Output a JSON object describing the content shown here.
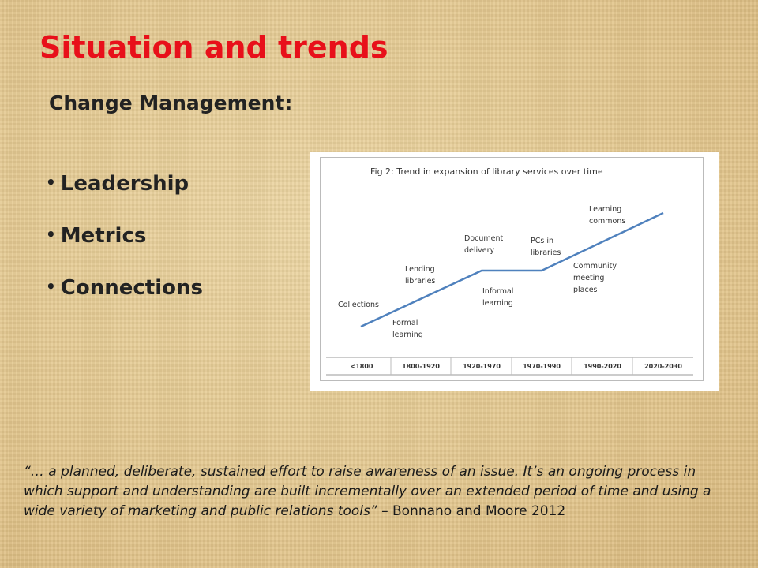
{
  "title": "Situation and trends",
  "subtitle": "Change Management:",
  "bullets": [
    "Leadership",
    "Metrics",
    "Connections"
  ],
  "figure": {
    "title": "Fig 2: Trend in expansion of library services over time",
    "labels": [
      "Collections",
      "Formal learning",
      "Lending libraries",
      "Document delivery",
      "Informal learning",
      "PCs in libraries",
      "Learning commons",
      "Community meeting places"
    ],
    "periods": [
      "<1800",
      "1800-1920",
      "1920-1970",
      "1970-1990",
      "1990-2020",
      "2020-2030"
    ]
  },
  "quote": {
    "text": "“… a planned, deliberate, sustained effort to raise awareness of an issue. It’s an ongoing process in which support and understanding are built incrementally over an extended period of time and using a wide variety of marketing and public relations tools”",
    "attribution": " – Bonnano and Moore 2012"
  }
}
